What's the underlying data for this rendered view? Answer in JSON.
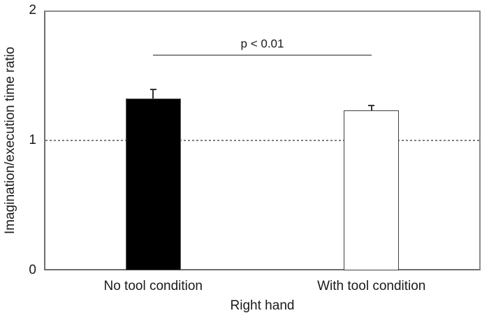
{
  "chart_data": {
    "type": "bar",
    "title": "",
    "categories": [
      "No tool condition",
      "With tool condition"
    ],
    "values": [
      1.32,
      1.23
    ],
    "errors": [
      0.07,
      0.04
    ],
    "bar_fill_colors": [
      "#000000",
      "#ffffff"
    ],
    "bar_edge_colors": [
      "#595959",
      "#404040"
    ],
    "xlabel": "Right hand",
    "ylabel": "Imagination/execution time ratio",
    "ylim": [
      0,
      2
    ],
    "yticks": [
      0,
      1,
      2
    ],
    "grid": false,
    "legend": "none",
    "reference_line": {
      "y": 1,
      "style": "dashed",
      "color": "#7f7f7f"
    },
    "significance": {
      "label": "p < 0.01",
      "y": 1.66,
      "from_category": 0,
      "to_category": 1
    }
  }
}
